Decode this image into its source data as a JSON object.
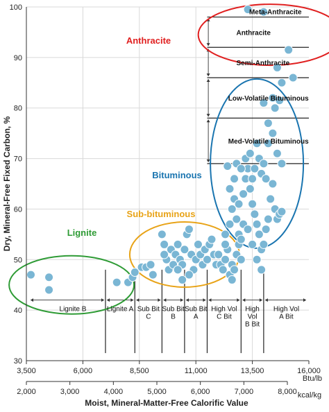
{
  "chart_data": {
    "type": "scatter",
    "ylabel": "Dry, Mineral-Free Fixed Carbon, %",
    "xlabel": "Moist, Mineral-Matter-Free Calorific Value",
    "ylim": [
      30,
      100
    ],
    "yticks": [
      30,
      40,
      50,
      60,
      70,
      80,
      90,
      100
    ],
    "xlim_btu": [
      3500,
      16000
    ],
    "xticks_btu": [
      {
        "value": 3500,
        "label": "3,500"
      },
      {
        "value": 6000,
        "label": "6,000"
      },
      {
        "value": 8500,
        "label": "8,500"
      },
      {
        "value": 11000,
        "label": "11,000"
      },
      {
        "value": 13500,
        "label": "13,500"
      },
      {
        "value": 16000,
        "label": "16,000"
      }
    ],
    "btu_unit": "Btu/lb",
    "xticks_kcal": [
      {
        "value": 2000,
        "label": "2,000"
      },
      {
        "value": 3000,
        "label": "3,000"
      },
      {
        "value": 4000,
        "label": "4,000"
      },
      {
        "value": 5000,
        "label": "5,000"
      },
      {
        "value": 6000,
        "label": "6,000"
      },
      {
        "value": 7000,
        "label": "7,000"
      },
      {
        "value": 8000,
        "label": "8,000"
      }
    ],
    "kcal_unit": "kcal/kg",
    "point_color": "#7ab6d4",
    "low_rank_dividers_btu": [
      7000,
      8300,
      9500,
      10500,
      11500,
      13000,
      14000
    ],
    "low_rank_classes": [
      {
        "lines": [
          "Lignite B"
        ],
        "from": 3500,
        "to": 7000
      },
      {
        "lines": [
          "Lignite A"
        ],
        "from": 7000,
        "to": 8300
      },
      {
        "lines": [
          "Sub Bit",
          "C"
        ],
        "from": 8300,
        "to": 9500
      },
      {
        "lines": [
          "Sub Bit",
          "B"
        ],
        "from": 9500,
        "to": 10500
      },
      {
        "lines": [
          "Sub Bit",
          "A"
        ],
        "from": 10500,
        "to": 11500
      },
      {
        "lines": [
          "High Vol",
          "C Bit"
        ],
        "from": 11500,
        "to": 13000
      },
      {
        "lines": [
          "High",
          "Vol",
          "B Bit"
        ],
        "from": 13000,
        "to": 14000
      },
      {
        "lines": [
          "High Vol",
          "A Bit"
        ],
        "from": 14000,
        "to": 16000
      }
    ],
    "high_rank_dividers_fc": [
      98,
      92,
      86,
      78,
      69
    ],
    "high_rank_classes": [
      {
        "label": "Meta-Anthracite",
        "fc": 98
      },
      {
        "label": "Anthracite",
        "from": 98,
        "to": 92
      },
      {
        "label": "Semi-Anthracite",
        "from": 92,
        "to": 86
      },
      {
        "label": "Low-Volatile Bituminous",
        "from": 86,
        "to": 78
      },
      {
        "label": "Med-Volatile Bituminous",
        "from": 78,
        "to": 69
      }
    ],
    "groups": [
      {
        "name": "Lignite",
        "color": "#2e9b35"
      },
      {
        "name": "Sub-bituminous",
        "color": "#e8a317"
      },
      {
        "name": "Bituminous",
        "color": "#1a75b0"
      },
      {
        "name": "Anthracite",
        "color": "#e02020"
      }
    ],
    "points": [
      [
        3700,
        47
      ],
      [
        4500,
        46.5
      ],
      [
        4500,
        44
      ],
      [
        7500,
        45.5
      ],
      [
        8000,
        45.5
      ],
      [
        8200,
        46.5
      ],
      [
        8300,
        47.5
      ],
      [
        8600,
        48.5
      ],
      [
        8800,
        48.5
      ],
      [
        9000,
        49
      ],
      [
        9100,
        47
      ],
      [
        9500,
        55
      ],
      [
        9600,
        53
      ],
      [
        9700,
        50
      ],
      [
        9600,
        51
      ],
      [
        9800,
        48
      ],
      [
        9900,
        52
      ],
      [
        10000,
        49
      ],
      [
        10100,
        51
      ],
      [
        10200,
        53
      ],
      [
        10300,
        50
      ],
      [
        10400,
        49
      ],
      [
        10500,
        52
      ],
      [
        10600,
        55
      ],
      [
        10700,
        56
      ],
      [
        10800,
        51
      ],
      [
        10900,
        48
      ],
      [
        11000,
        50
      ],
      [
        11100,
        53
      ],
      [
        11200,
        51
      ],
      [
        11300,
        49
      ],
      [
        11400,
        52
      ],
      [
        11500,
        50
      ],
      [
        11600,
        53
      ],
      [
        11700,
        54
      ],
      [
        11800,
        51
      ],
      [
        11900,
        49
      ],
      [
        12000,
        51
      ],
      [
        12100,
        49
      ],
      [
        12200,
        48
      ],
      [
        12300,
        50
      ],
      [
        12400,
        52
      ],
      [
        12500,
        47
      ],
      [
        12600,
        49
      ],
      [
        12700,
        48
      ],
      [
        12800,
        51
      ],
      [
        12900,
        53
      ],
      [
        13000,
        50
      ],
      [
        12600,
        46
      ],
      [
        10200,
        48
      ],
      [
        10400,
        46
      ],
      [
        10700,
        47
      ],
      [
        12300,
        55
      ],
      [
        12500,
        57
      ],
      [
        12600,
        60
      ],
      [
        12700,
        62
      ],
      [
        12800,
        58
      ],
      [
        12900,
        55
      ],
      [
        13000,
        54
      ],
      [
        13100,
        63
      ],
      [
        13200,
        66
      ],
      [
        13300,
        68
      ],
      [
        13400,
        64
      ],
      [
        13500,
        61
      ],
      [
        13600,
        59
      ],
      [
        13700,
        57
      ],
      [
        13800,
        55
      ],
      [
        13900,
        52
      ],
      [
        14000,
        53
      ],
      [
        14100,
        56
      ],
      [
        14200,
        58
      ],
      [
        14300,
        62
      ],
      [
        14400,
        65
      ],
      [
        14500,
        60
      ],
      [
        14600,
        58
      ],
      [
        14700,
        59
      ],
      [
        14800,
        59.5
      ],
      [
        12800,
        69
      ],
      [
        13000,
        68
      ],
      [
        13200,
        70
      ],
      [
        13400,
        71
      ],
      [
        13600,
        68
      ],
      [
        13800,
        70
      ],
      [
        14000,
        69
      ],
      [
        14200,
        73
      ],
      [
        14400,
        75
      ],
      [
        14600,
        71
      ],
      [
        14800,
        69
      ],
      [
        13700,
        73
      ],
      [
        13900,
        67
      ],
      [
        14100,
        66
      ],
      [
        13500,
        66
      ],
      [
        12400,
        68.5
      ],
      [
        12500,
        64
      ],
      [
        12700,
        66
      ],
      [
        12900,
        61
      ],
      [
        13100,
        57
      ],
      [
        13300,
        56
      ],
      [
        13500,
        53
      ],
      [
        13700,
        50
      ],
      [
        13900,
        48
      ],
      [
        12300,
        53
      ],
      [
        14200,
        77
      ],
      [
        14000,
        81
      ],
      [
        14500,
        80
      ],
      [
        14700,
        81.5
      ],
      [
        14400,
        82
      ],
      [
        14800,
        85
      ],
      [
        15300,
        86
      ],
      [
        14600,
        88
      ],
      [
        15100,
        91.5
      ],
      [
        13300,
        99.5
      ],
      [
        14000,
        99
      ]
    ],
    "grp_text": {
      "lignite": "Lignite",
      "sub": "Sub-bituminous",
      "bit": "Bituminous",
      "anth": "Anthracite"
    }
  }
}
